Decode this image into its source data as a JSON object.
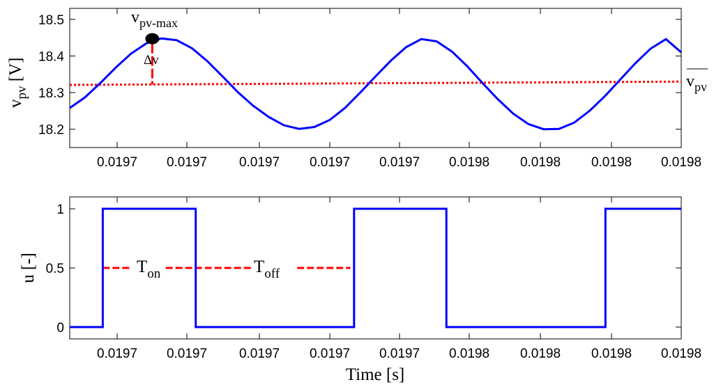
{
  "chart_data": [
    {
      "type": "line",
      "ylabel": "v",
      "ylabel_sub": "pv",
      "ylabel_unit": " [V]",
      "ylim": [
        18.15,
        18.53
      ],
      "yticks": [
        18.2,
        18.3,
        18.4,
        18.5
      ],
      "xtick_labels": [
        "0.0197",
        "0.0197",
        "0.0197",
        "0.0197",
        "0.0197",
        "0.0198",
        "0.0198",
        "0.0198",
        "0.0198"
      ],
      "grid": false,
      "series": [
        {
          "color": "#0000ff",
          "x": [
            0.0,
            0.025,
            0.05,
            0.075,
            0.1,
            0.125,
            0.15,
            0.175,
            0.2,
            0.225,
            0.25,
            0.275,
            0.3,
            0.325,
            0.35,
            0.375,
            0.4,
            0.425,
            0.45,
            0.475,
            0.5,
            0.525,
            0.55,
            0.575,
            0.6,
            0.625,
            0.65,
            0.675,
            0.7,
            0.725,
            0.75,
            0.775,
            0.8,
            0.825,
            0.85,
            0.875,
            0.9,
            0.925,
            0.95,
            0.975,
            1.0
          ],
          "y": [
            18.258,
            18.287,
            18.326,
            18.368,
            18.406,
            18.434,
            18.448,
            18.443,
            18.421,
            18.386,
            18.344,
            18.301,
            18.264,
            18.234,
            18.211,
            18.201,
            18.206,
            18.225,
            18.258,
            18.3,
            18.344,
            18.387,
            18.424,
            18.446,
            18.44,
            18.412,
            18.372,
            18.326,
            18.282,
            18.243,
            18.214,
            18.2,
            18.201,
            18.218,
            18.25,
            18.29,
            18.335,
            18.38,
            18.42,
            18.446,
            18.41
          ]
        },
        {
          "color": "#ff0000",
          "style": "dotted",
          "x": [
            0.0,
            1.0
          ],
          "y": [
            18.321,
            18.33
          ]
        }
      ],
      "annotations": {
        "max_label": "v",
        "max_label_sub": "pv-max",
        "delta_label": "Δv",
        "mean_label": "v",
        "mean_label_sub": "pv"
      }
    },
    {
      "type": "line",
      "xlabel": "Time [s]",
      "ylabel": "u [-]",
      "ylim": [
        -0.1,
        1.1
      ],
      "yticks": [
        0,
        0.5,
        1
      ],
      "ytick_labels": [
        "0",
        "0.5",
        "1"
      ],
      "xtick_labels": [
        "0.0197",
        "0.0197",
        "0.0197",
        "0.0197",
        "0.0197",
        "0.0198",
        "0.0198",
        "0.0198",
        "0.0198"
      ],
      "grid": false,
      "series": [
        {
          "color": "#0000ff",
          "x": [
            0.0,
            0.054,
            0.054,
            0.206,
            0.206,
            0.465,
            0.465,
            0.616,
            0.616,
            0.876,
            0.876,
            1.0
          ],
          "y": [
            0,
            0,
            1,
            1,
            0,
            0,
            1,
            1,
            0,
            0,
            1,
            1
          ]
        }
      ],
      "annotations": {
        "on_label": "T",
        "on_label_sub": "on",
        "off_label": "T",
        "off_label_sub": "off",
        "level": 0.5
      }
    }
  ]
}
